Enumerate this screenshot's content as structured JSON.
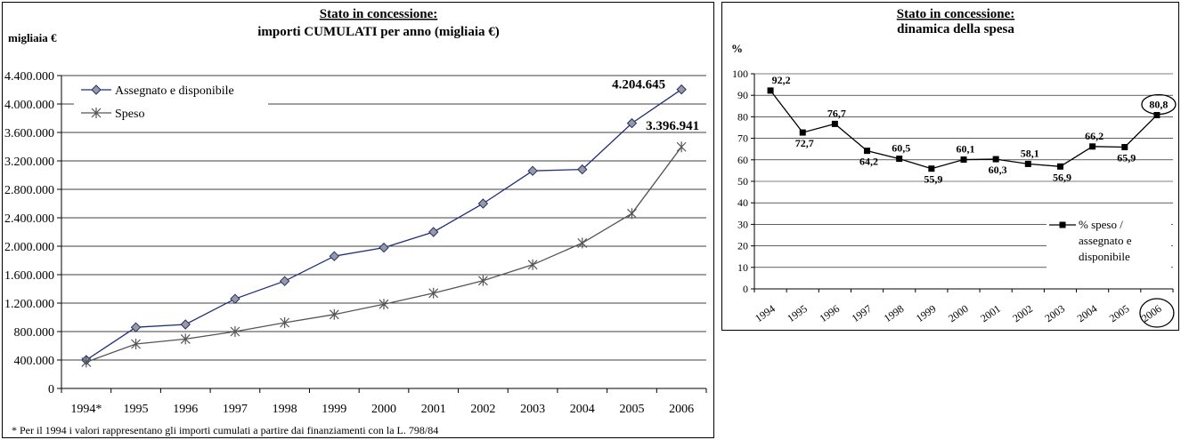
{
  "chart_data": [
    {
      "type": "line",
      "title": "Stato in concessione:",
      "subtitle": "importi CUMULATI per anno (migliaia €)",
      "ylabel": "migliaia €",
      "xlabel": "",
      "ylim": [
        0,
        4400000
      ],
      "ytick_step": 400000,
      "ytick_labels": [
        "0",
        "400.000",
        "800.000",
        "1.200.000",
        "1.600.000",
        "2.000.000",
        "2.400.000",
        "2.800.000",
        "3.200.000",
        "3.600.000",
        "4.000.000",
        "4.400.000"
      ],
      "grid": true,
      "legend_position": "top-left",
      "categories": [
        "1994*",
        "1995",
        "1996",
        "1997",
        "1998",
        "1999",
        "2000",
        "2001",
        "2002",
        "2003",
        "2004",
        "2005",
        "2006"
      ],
      "series": [
        {
          "name": "Assegnato e disponibile",
          "color": "#1f2d7a",
          "marker": "diamond",
          "values": [
            400000,
            860000,
            900000,
            1260000,
            1510000,
            1860000,
            1980000,
            2200000,
            2600000,
            3060000,
            3080000,
            3730000,
            4204645
          ]
        },
        {
          "name": "Speso",
          "color": "#555555",
          "marker": "asterisk",
          "values": [
            370000,
            625000,
            695000,
            800000,
            925000,
            1040000,
            1185000,
            1340000,
            1515000,
            1740000,
            2045000,
            2460000,
            3396941
          ]
        }
      ],
      "annotations": [
        "4.204.645",
        "3.396.941"
      ],
      "footnote": "* Per il 1994 i valori rappresentano gli importi cumulati a partire dai finanziamenti con la L. 798/84"
    },
    {
      "type": "line",
      "title": "Stato in concessione:",
      "subtitle": "dinamica della spesa",
      "ylabel": "%",
      "xlabel": "",
      "ylim": [
        0,
        100
      ],
      "ytick_step": 10,
      "grid": true,
      "legend_position": "bottom-right",
      "categories": [
        "1994",
        "1995",
        "1996",
        "1997",
        "1998",
        "1999",
        "2000",
        "2001",
        "2002",
        "2003",
        "2004",
        "2005",
        "2006"
      ],
      "series": [
        {
          "name": "% speso / assegnato e disponibile",
          "legend_lines": [
            "% speso /",
            "assegnato e",
            "disponibile"
          ],
          "color": "#000000",
          "marker": "square",
          "values": [
            92.2,
            72.7,
            76.7,
            64.2,
            60.5,
            55.9,
            60.1,
            60.3,
            58.1,
            56.9,
            66.2,
            65.9,
            80.8
          ],
          "labels": [
            "92,2",
            "72,7",
            "76,7",
            "64,2",
            "60,5",
            "55,9",
            "60,1",
            "60,3",
            "58,1",
            "56,9",
            "66,2",
            "65,9",
            "80,8"
          ]
        }
      ],
      "highlighted_category": "2006"
    }
  ]
}
